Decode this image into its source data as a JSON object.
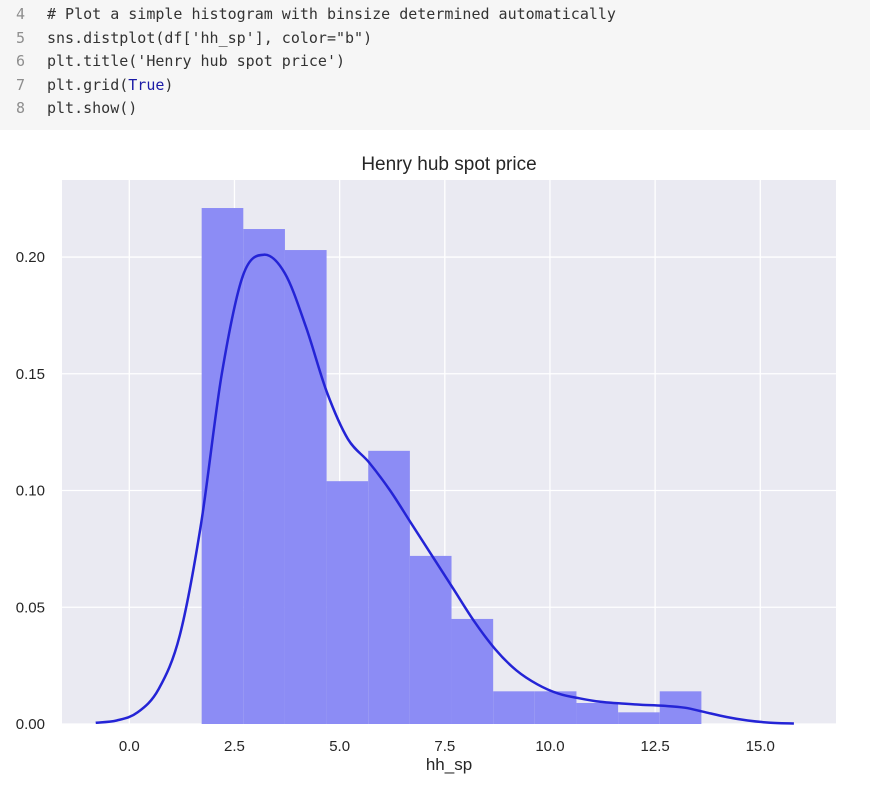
{
  "code": {
    "lines": [
      {
        "num": "4",
        "pre": "# Plot a simple histogram with binsize determined automatically",
        "kw": "",
        "post": ""
      },
      {
        "num": "5",
        "pre": "sns.distplot(df['hh_sp'], color=\"b\")",
        "kw": "",
        "post": ""
      },
      {
        "num": "6",
        "pre": "plt.title('Henry hub spot price')",
        "kw": "",
        "post": ""
      },
      {
        "num": "7",
        "pre": "plt.grid(",
        "kw": "True",
        "post": ")"
      },
      {
        "num": "8",
        "pre": "plt.show()",
        "kw": "",
        "post": ""
      }
    ]
  },
  "chart_data": {
    "type": "bar",
    "title": "Henry hub spot price",
    "xlabel": "hh_sp",
    "ylabel": "",
    "xlim": [
      -1.6,
      16.8
    ],
    "ylim": [
      0,
      0.233
    ],
    "grid": true,
    "xticks": [
      0.0,
      2.5,
      5.0,
      7.5,
      10.0,
      12.5,
      15.0
    ],
    "xtick_labels": [
      "0.0",
      "2.5",
      "5.0",
      "7.5",
      "10.0",
      "12.5",
      "15.0"
    ],
    "yticks": [
      0.0,
      0.05,
      0.1,
      0.15,
      0.2
    ],
    "ytick_labels": [
      "0.00",
      "0.05",
      "0.10",
      "0.15",
      "0.20"
    ],
    "histogram": {
      "bin_edges": [
        1.72,
        2.71,
        3.7,
        4.69,
        5.68,
        6.67,
        7.66,
        8.65,
        9.64,
        10.63,
        11.62,
        12.61,
        13.6
      ],
      "densities": [
        0.221,
        0.212,
        0.203,
        0.104,
        0.117,
        0.072,
        0.045,
        0.014,
        0.014,
        0.009,
        0.005,
        0.014
      ],
      "color": "#8c8cf5"
    },
    "kde": {
      "x": [
        -0.8,
        -0.3,
        0.2,
        0.7,
        1.2,
        1.7,
        2.2,
        2.7,
        3.2,
        3.7,
        4.2,
        4.7,
        5.2,
        5.7,
        6.2,
        6.7,
        7.2,
        7.7,
        8.2,
        8.7,
        9.2,
        9.7,
        10.2,
        10.7,
        11.2,
        11.7,
        12.2,
        12.7,
        13.2,
        13.7,
        14.2,
        14.7,
        15.2,
        15.8
      ],
      "y": [
        0.0005,
        0.0015,
        0.005,
        0.015,
        0.038,
        0.085,
        0.15,
        0.192,
        0.201,
        0.193,
        0.17,
        0.142,
        0.122,
        0.112,
        0.1,
        0.086,
        0.072,
        0.058,
        0.044,
        0.032,
        0.023,
        0.017,
        0.013,
        0.011,
        0.0095,
        0.0088,
        0.0082,
        0.0078,
        0.007,
        0.005,
        0.003,
        0.0015,
        0.0006,
        0.0002
      ],
      "color": "#2424d6"
    },
    "background": "#eaeaf2",
    "gridcolor": "#ffffff"
  }
}
